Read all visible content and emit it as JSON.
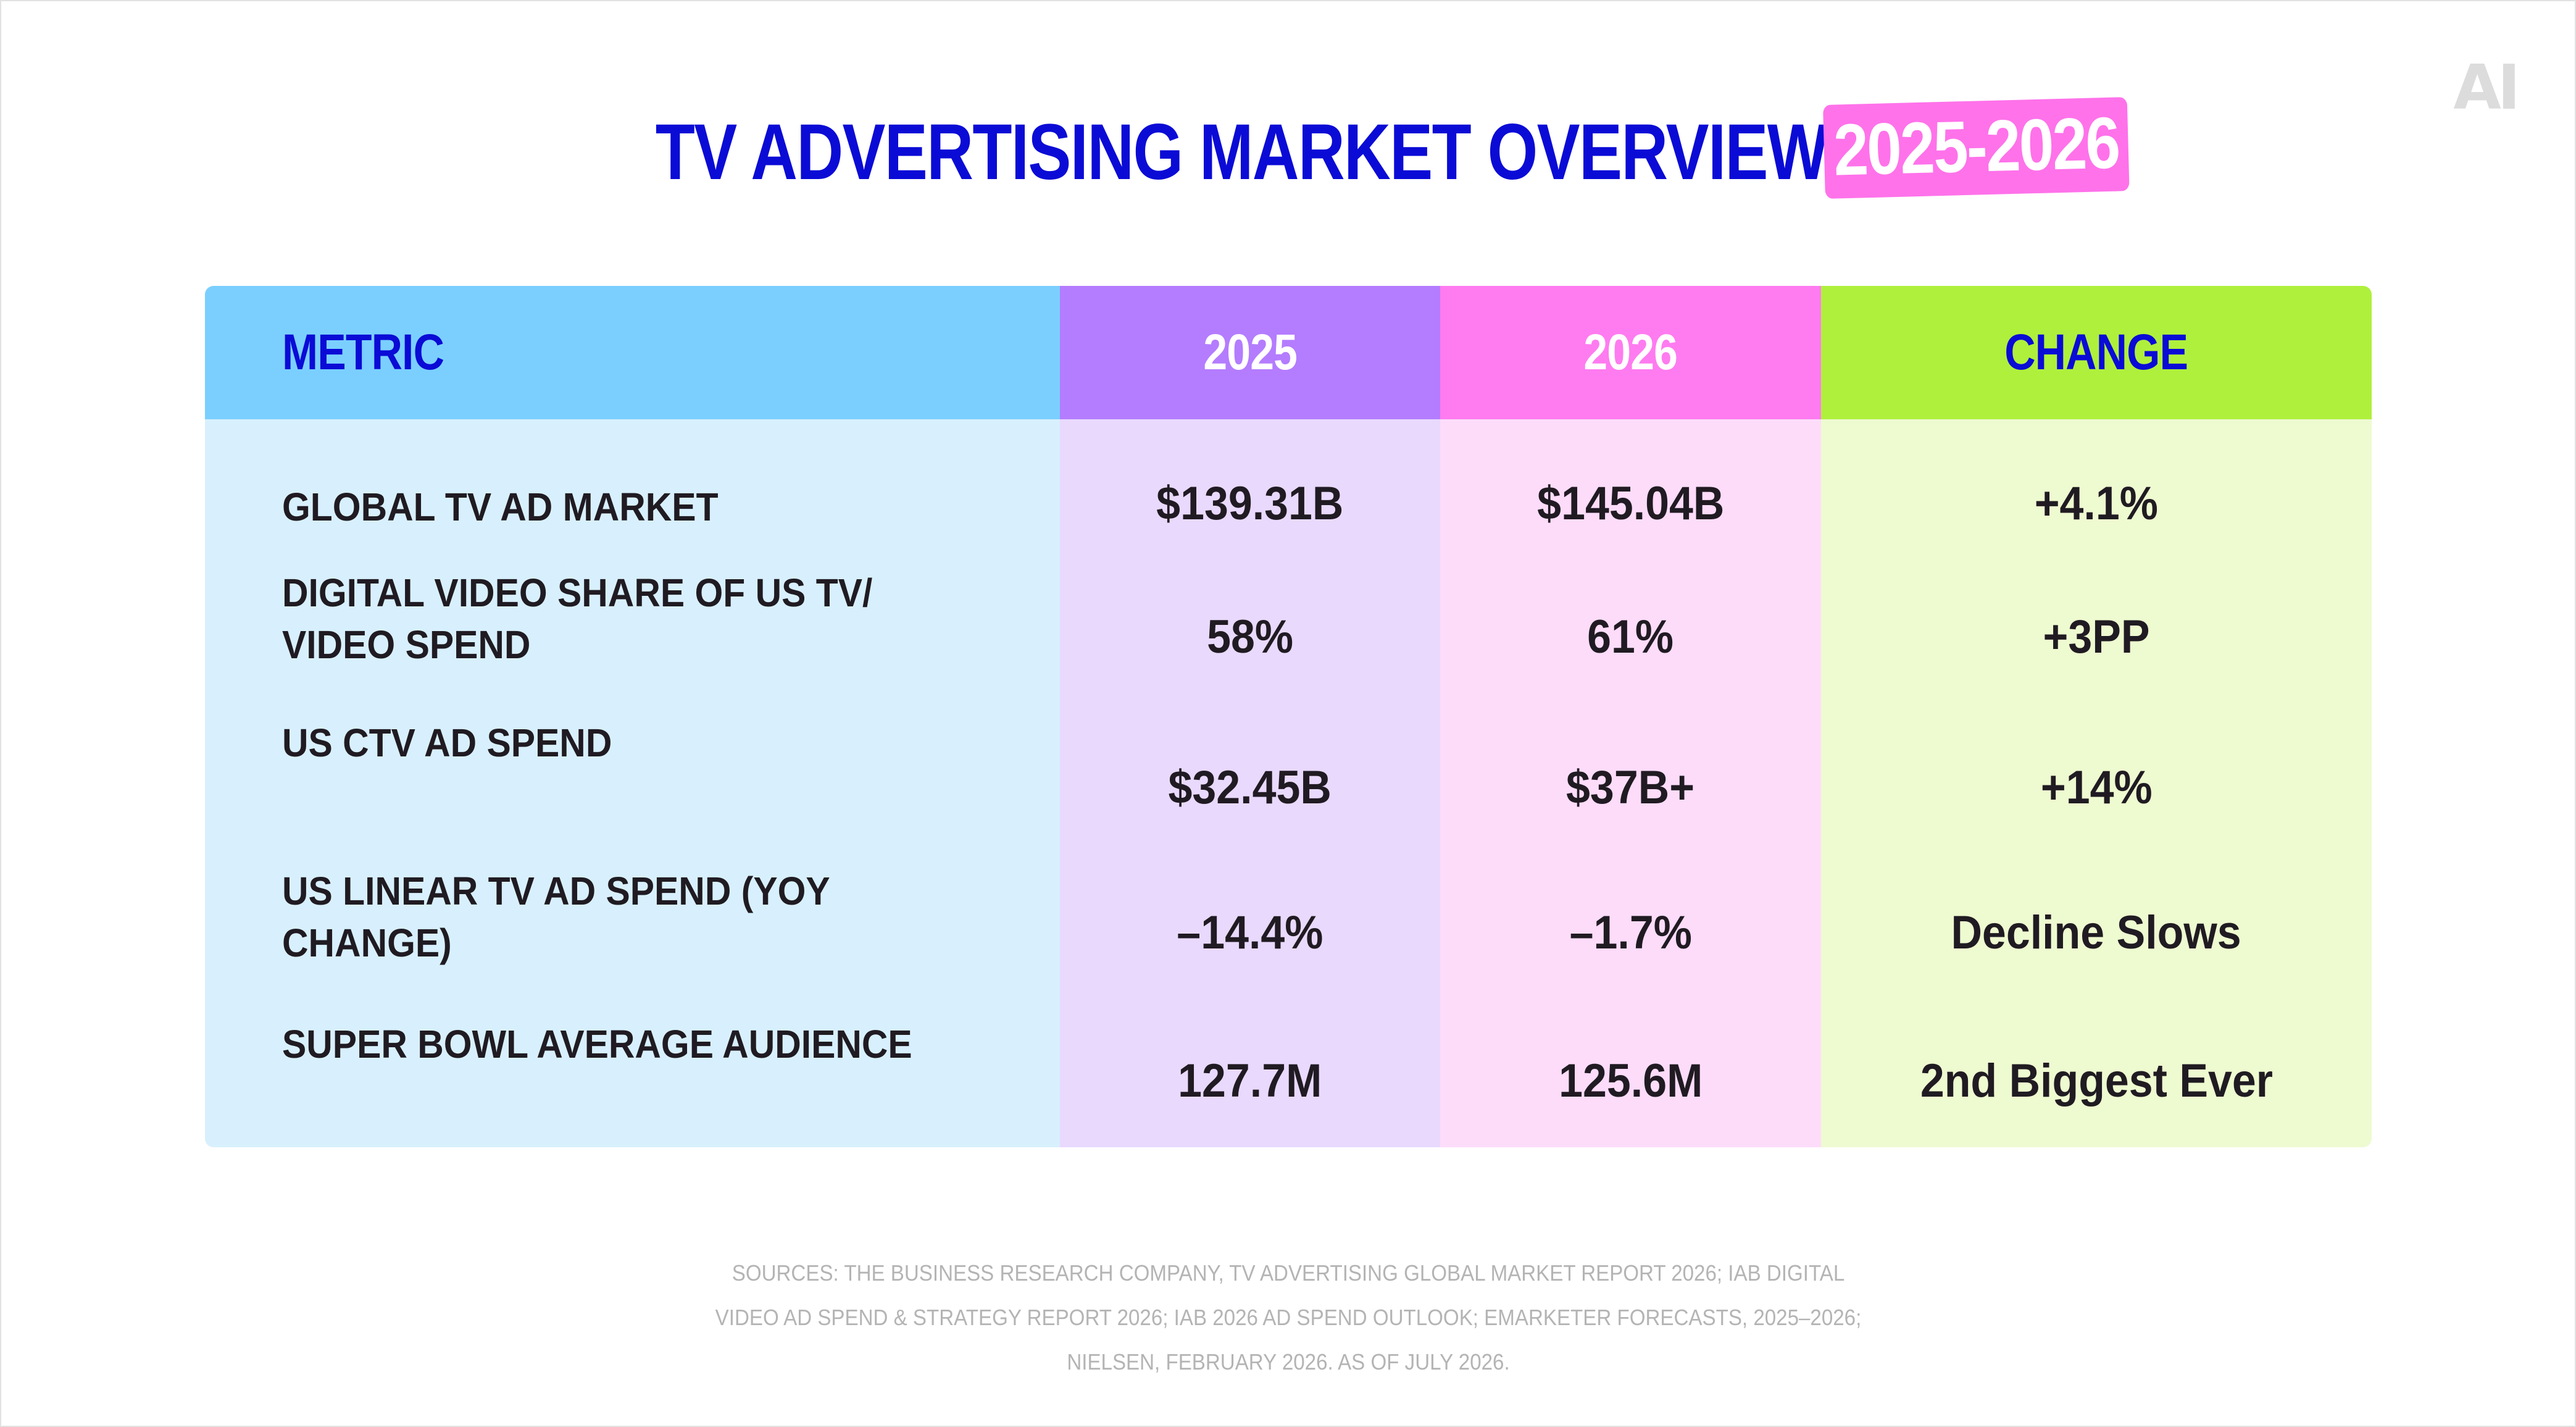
{
  "logo_text": "AI",
  "title": {
    "main": "TV ADVERTISING MARKET OVERVIEW",
    "pill": "2025-2026"
  },
  "colors": {
    "title_blue": "#0b0bd6",
    "pill_pink": "#ff72ea",
    "header_metric": "#7acfff",
    "header_2025": "#b47cff",
    "header_2026": "#ff7bf0",
    "header_change": "#aff03c"
  },
  "table": {
    "headers": {
      "metric": "METRIC",
      "y2025": "2025",
      "y2026": "2026",
      "change": "CHANGE"
    },
    "rows": [
      {
        "metric": "GLOBAL TV AD MARKET",
        "y2025": "$139.31B",
        "y2026": "$145.04B",
        "change": "+4.1%"
      },
      {
        "metric": "DIGITAL VIDEO SHARE OF US TV/ VIDEO SPEND",
        "y2025": "58%",
        "y2026": "61%",
        "change": "+3PP"
      },
      {
        "metric": "US CTV AD SPEND",
        "y2025": "$32.45B",
        "y2026": "$37B+",
        "change": "+14%"
      },
      {
        "metric": "US LINEAR TV AD SPEND (YOY CHANGE)",
        "y2025": "–14.4%",
        "y2026": "–1.7%",
        "change": "Decline Slows"
      },
      {
        "metric": "SUPER BOWL AVERAGE AUDIENCE",
        "y2025": "127.7M",
        "y2026": "125.6M",
        "change": "2nd Biggest Ever"
      }
    ]
  },
  "sources": "SOURCES: THE BUSINESS RESEARCH COMPANY, TV ADVERTISING GLOBAL MARKET REPORT 2026; IAB DIGITAL VIDEO AD SPEND & STRATEGY REPORT 2026; IAB 2026 AD SPEND OUTLOOK; EMARKETER FORECASTS, 2025–2026; NIELSEN, FEBRUARY 2026. AS OF JULY 2026."
}
